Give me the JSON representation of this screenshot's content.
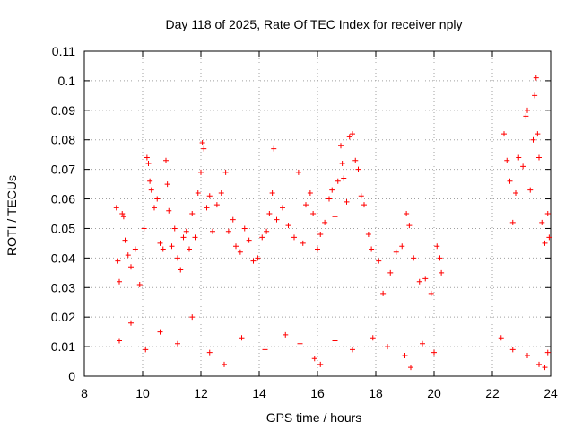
{
  "chart_data": {
    "type": "scatter",
    "title": "Day 118 of 2025, Rate Of TEC Index for receiver nply",
    "xlabel": "GPS time / hours",
    "ylabel": "ROTI / TECUs",
    "xlim": [
      8,
      24
    ],
    "ylim": [
      0,
      0.11
    ],
    "grid": true,
    "marker": "+",
    "color": "#ff0000",
    "x_ticks": [
      "8",
      "10",
      "12",
      "14",
      "16",
      "18",
      "20",
      "22",
      "24"
    ],
    "y_ticks": [
      "0",
      "0.01",
      "0.02",
      "0.03",
      "0.04",
      "0.05",
      "0.06",
      "0.07",
      "0.08",
      "0.09",
      "0.1",
      "0.11"
    ],
    "series": [
      {
        "points": [
          [
            9.1,
            0.057
          ],
          [
            9.15,
            0.039
          ],
          [
            9.2,
            0.032
          ],
          [
            9.3,
            0.055
          ],
          [
            9.35,
            0.054
          ],
          [
            9.4,
            0.046
          ],
          [
            9.5,
            0.041
          ],
          [
            9.6,
            0.037
          ],
          [
            9.75,
            0.043
          ],
          [
            9.9,
            0.031
          ],
          [
            10.05,
            0.05
          ],
          [
            10.15,
            0.074
          ],
          [
            10.2,
            0.072
          ],
          [
            10.25,
            0.066
          ],
          [
            10.3,
            0.063
          ],
          [
            10.4,
            0.057
          ],
          [
            10.5,
            0.06
          ],
          [
            10.6,
            0.045
          ],
          [
            10.7,
            0.043
          ],
          [
            10.8,
            0.073
          ],
          [
            10.85,
            0.065
          ],
          [
            10.9,
            0.056
          ],
          [
            11.0,
            0.044
          ],
          [
            11.1,
            0.05
          ],
          [
            11.2,
            0.04
          ],
          [
            11.3,
            0.036
          ],
          [
            11.4,
            0.047
          ],
          [
            11.5,
            0.049
          ],
          [
            11.6,
            0.043
          ],
          [
            11.7,
            0.055
          ],
          [
            11.8,
            0.047
          ],
          [
            11.9,
            0.062
          ],
          [
            12.0,
            0.069
          ],
          [
            12.05,
            0.079
          ],
          [
            12.1,
            0.077
          ],
          [
            12.2,
            0.057
          ],
          [
            12.3,
            0.061
          ],
          [
            12.4,
            0.049
          ],
          [
            12.55,
            0.058
          ],
          [
            12.7,
            0.062
          ],
          [
            12.85,
            0.069
          ],
          [
            12.95,
            0.049
          ],
          [
            13.1,
            0.053
          ],
          [
            13.2,
            0.044
          ],
          [
            13.35,
            0.042
          ],
          [
            13.5,
            0.05
          ],
          [
            13.65,
            0.046
          ],
          [
            13.8,
            0.039
          ],
          [
            13.95,
            0.04
          ],
          [
            14.1,
            0.047
          ],
          [
            14.25,
            0.049
          ],
          [
            14.35,
            0.055
          ],
          [
            14.45,
            0.062
          ],
          [
            14.5,
            0.077
          ],
          [
            14.6,
            0.053
          ],
          [
            14.8,
            0.057
          ],
          [
            15.0,
            0.051
          ],
          [
            15.2,
            0.047
          ],
          [
            15.35,
            0.069
          ],
          [
            15.5,
            0.045
          ],
          [
            15.6,
            0.058
          ],
          [
            15.75,
            0.062
          ],
          [
            15.85,
            0.055
          ],
          [
            16.0,
            0.043
          ],
          [
            16.1,
            0.048
          ],
          [
            16.25,
            0.052
          ],
          [
            16.4,
            0.06
          ],
          [
            16.5,
            0.063
          ],
          [
            16.6,
            0.054
          ],
          [
            16.7,
            0.066
          ],
          [
            16.8,
            0.078
          ],
          [
            16.85,
            0.072
          ],
          [
            16.9,
            0.067
          ],
          [
            17.0,
            0.059
          ],
          [
            17.1,
            0.081
          ],
          [
            17.2,
            0.082
          ],
          [
            17.3,
            0.073
          ],
          [
            17.4,
            0.07
          ],
          [
            17.5,
            0.061
          ],
          [
            17.6,
            0.058
          ],
          [
            17.75,
            0.048
          ],
          [
            17.85,
            0.043
          ],
          [
            18.1,
            0.039
          ],
          [
            18.25,
            0.028
          ],
          [
            18.5,
            0.035
          ],
          [
            18.7,
            0.042
          ],
          [
            18.9,
            0.044
          ],
          [
            19.05,
            0.055
          ],
          [
            19.15,
            0.051
          ],
          [
            19.3,
            0.04
          ],
          [
            19.5,
            0.032
          ],
          [
            19.7,
            0.033
          ],
          [
            19.9,
            0.028
          ],
          [
            20.1,
            0.044
          ],
          [
            20.2,
            0.04
          ],
          [
            20.25,
            0.035
          ],
          [
            22.4,
            0.082
          ],
          [
            22.5,
            0.073
          ],
          [
            22.6,
            0.066
          ],
          [
            22.7,
            0.052
          ],
          [
            22.8,
            0.062
          ],
          [
            22.9,
            0.074
          ],
          [
            23.05,
            0.071
          ],
          [
            23.15,
            0.088
          ],
          [
            23.2,
            0.09
          ],
          [
            23.3,
            0.063
          ],
          [
            23.4,
            0.08
          ],
          [
            23.45,
            0.095
          ],
          [
            23.5,
            0.101
          ],
          [
            23.55,
            0.082
          ],
          [
            23.6,
            0.074
          ],
          [
            23.7,
            0.052
          ],
          [
            23.8,
            0.045
          ],
          [
            23.9,
            0.055
          ],
          [
            23.95,
            0.047
          ],
          [
            9.2,
            0.012
          ],
          [
            9.6,
            0.018
          ],
          [
            10.1,
            0.009
          ],
          [
            10.6,
            0.015
          ],
          [
            11.2,
            0.011
          ],
          [
            11.7,
            0.02
          ],
          [
            12.3,
            0.008
          ],
          [
            12.8,
            0.004
          ],
          [
            13.4,
            0.013
          ],
          [
            14.2,
            0.009
          ],
          [
            14.9,
            0.014
          ],
          [
            15.4,
            0.011
          ],
          [
            15.9,
            0.006
          ],
          [
            16.1,
            0.004
          ],
          [
            16.6,
            0.012
          ],
          [
            17.2,
            0.009
          ],
          [
            17.9,
            0.013
          ],
          [
            18.4,
            0.01
          ],
          [
            19.0,
            0.007
          ],
          [
            19.2,
            0.003
          ],
          [
            19.6,
            0.011
          ],
          [
            20.0,
            0.008
          ],
          [
            22.3,
            0.013
          ],
          [
            22.7,
            0.009
          ],
          [
            23.2,
            0.007
          ],
          [
            23.6,
            0.004
          ],
          [
            23.8,
            0.003
          ],
          [
            23.9,
            0.008
          ]
        ]
      }
    ]
  }
}
